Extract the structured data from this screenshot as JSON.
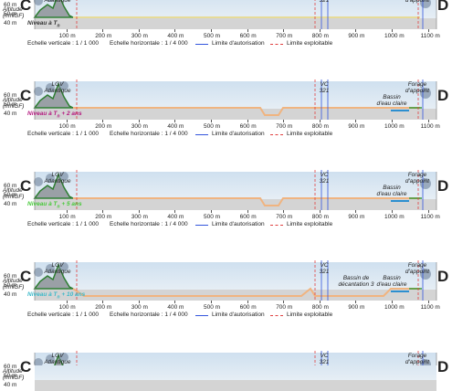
{
  "common": {
    "left_letter": "C",
    "right_letter": "D",
    "altitude_label": "Altitude",
    "altitude_unit": "(mNGF)",
    "lgv_line1": "LGV",
    "lgv_line2": "Atlantique",
    "vc_line1": "VC",
    "vc_line2": "321",
    "forage_line1": "Forage",
    "forage_line2": "d'appoint",
    "bassin_line1": "Bassin",
    "bassin_line2": "d'eau claire",
    "decantation_line1": "Bassin de",
    "decantation_line2": "décantation 3",
    "y_ticks": [
      "60 m",
      "50 m",
      "40 m"
    ],
    "x_ticks": [
      "100 m",
      "200 m",
      "300 m",
      "400 m",
      "500 m",
      "600 m",
      "700 m",
      "800 m",
      "900 m",
      "1000 m",
      "1100 m"
    ],
    "legend": {
      "vertical_scale": "Echelle verticale : 1 / 1 000",
      "horizontal_scale": "Echelle horizontale : 1 / 4 000",
      "auth_limit": "Limite d'autorisation",
      "exploit_limit": "Limite exploitable"
    }
  },
  "colors": {
    "tn": "#333333",
    "tn2": "#b4197f",
    "tn5": "#47c93a",
    "tn10": "#3cb9c9",
    "auth_limit": "#3355dd",
    "exploit_limit": "#e04040",
    "pit": "#f0b480",
    "water": "#2c8fd0",
    "vegetation": "#2e7d32"
  },
  "panels": [
    {
      "level_prefix": "Niveau à T",
      "level_sub": "n",
      "level_suffix": "",
      "color_key": "tn"
    },
    {
      "level_prefix": "Niveau à T",
      "level_sub": "n",
      "level_suffix": " + 2 ans",
      "color_key": "tn2"
    },
    {
      "level_prefix": "Niveau à T",
      "level_sub": "n",
      "level_suffix": " + 5 ans",
      "color_key": "tn5"
    },
    {
      "level_prefix": "Niveau à T",
      "level_sub": "n",
      "level_suffix": " + 10 ans",
      "color_key": "tn10"
    },
    {
      "level_prefix": "",
      "level_sub": "",
      "level_suffix": "",
      "color_key": "tn"
    }
  ]
}
